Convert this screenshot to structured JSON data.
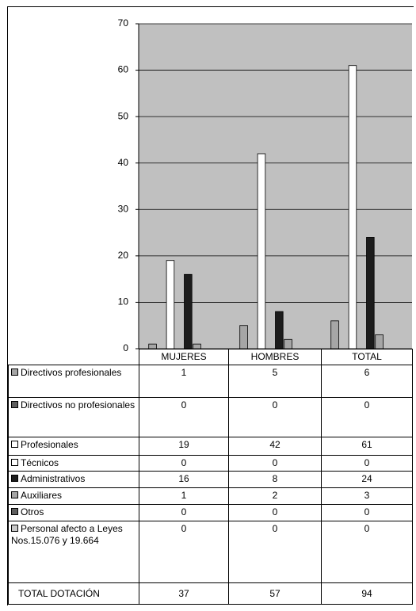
{
  "chart_data": {
    "type": "bar",
    "categories": [
      "MUJERES",
      "HOMBRES",
      "TOTAL"
    ],
    "ylim": [
      0,
      70
    ],
    "yticks": [
      0,
      10,
      20,
      30,
      40,
      50,
      60,
      70
    ],
    "grid": true,
    "series": [
      {
        "name": "Directivos profesionales",
        "color": "#a6a6a6",
        "values": [
          1,
          5,
          6
        ]
      },
      {
        "name": "Directivos no profesionales",
        "color": "#5e5e5e",
        "values": [
          0,
          0,
          0
        ]
      },
      {
        "name": "Profesionales",
        "color": "#ffffff",
        "values": [
          19,
          42,
          61
        ]
      },
      {
        "name": "Técnicos",
        "color": "#ffffff",
        "values": [
          0,
          0,
          0
        ]
      },
      {
        "name": "Administrativos",
        "color": "#1c1c1c",
        "values": [
          16,
          8,
          24
        ]
      },
      {
        "name": "Auxiliares",
        "color": "#a6a6a6",
        "values": [
          1,
          2,
          3
        ]
      },
      {
        "name": "Otros",
        "color": "#5e5e5e",
        "values": [
          0,
          0,
          0
        ]
      },
      {
        "name": "Personal afecto a Leyes Nos.15.076 y 19.664",
        "color": "#c8c8c8",
        "values": [
          0,
          0,
          0
        ]
      }
    ],
    "total_row": {
      "label": "TOTAL DOTACIÓN",
      "values": [
        37,
        57,
        94
      ]
    }
  }
}
